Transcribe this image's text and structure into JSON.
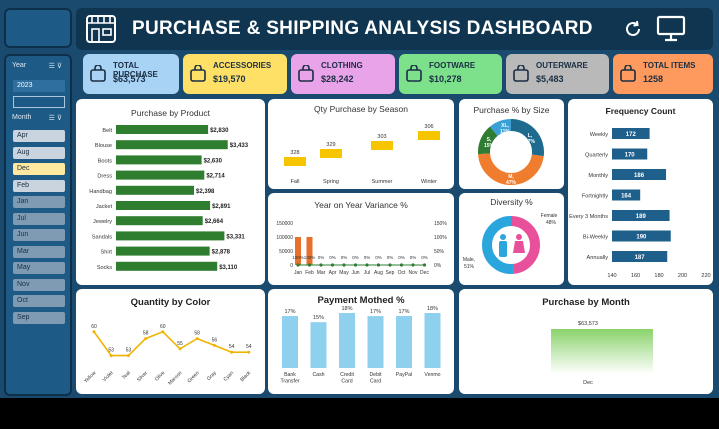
{
  "header": {
    "title": "PURCHASE & SHIPPING ANALYSIS DASHBOARD"
  },
  "slicers": {
    "year": {
      "label": "Year",
      "selected": "2023"
    },
    "month": {
      "label": "Month",
      "items": [
        "Apr",
        "Aug",
        "Dec",
        "Feb",
        "Jan",
        "Jul",
        "Jun",
        "Mar",
        "May",
        "Nov",
        "Oct",
        "Sep"
      ],
      "selected": "Dec"
    }
  },
  "kpis": [
    {
      "label": "TOTAL PURCHASE",
      "value": "$63,573",
      "color": "#a9d3f5",
      "icon": "cart-icon"
    },
    {
      "label": "ACCESSORIES",
      "value": "$19,570",
      "color": "#ffe066",
      "icon": "bag-icon"
    },
    {
      "label": "CLOTHING",
      "value": "$28,242",
      "color": "#e9a3e8",
      "icon": "clothes-icon"
    },
    {
      "label": "FOOTWARE",
      "value": "$10,278",
      "color": "#7de08a",
      "icon": "shoe-icon"
    },
    {
      "label": "OUTERWARE",
      "value": "$5,483",
      "color": "#b9b9b9",
      "icon": "shirt-icon"
    },
    {
      "label": "TOTAL ITEMS",
      "value": "1258",
      "color": "#ff9a5e",
      "icon": "house-icon"
    }
  ],
  "titles": {
    "product": "Purchase by Product",
    "season": "Qty Purchase by Season",
    "size": "Purchase % by Size",
    "freq": "Frequency Count",
    "yoy": "Year on Year Variance %",
    "diversity": "Diversity %",
    "color": "Quantity by Color",
    "payment": "Payment Mothed %",
    "month": "Purchase by Month"
  },
  "chart_data": [
    {
      "type": "bar",
      "title": "Purchase by Product",
      "categories": [
        "Belt",
        "Blouse",
        "Boots",
        "Dress",
        "Handbag",
        "Jacket",
        "Jewelry",
        "Sandals",
        "Shirt",
        "Socks"
      ],
      "values": [
        2830,
        3433,
        2630,
        2714,
        2398,
        2891,
        2664,
        3331,
        2878,
        3110
      ],
      "labels": [
        "$2,830",
        "$3,433",
        "$2,630",
        "$2,714",
        "$2,398",
        "$2,891",
        "$2,664",
        "$3,331",
        "$2,878",
        "$3,110"
      ]
    },
    {
      "type": "bar",
      "title": "Qty Purchase by Season",
      "categories": [
        "Fall",
        "Spring",
        "Summer",
        "Winter"
      ],
      "values": [
        328,
        329,
        303,
        306
      ]
    },
    {
      "type": "pie",
      "title": "Purchase % by Size",
      "slices": [
        {
          "name": "L",
          "value": 27,
          "color": "#1f6b8f"
        },
        {
          "name": "M",
          "value": 47,
          "color": "#f07c2e"
        },
        {
          "name": "S",
          "value": 15,
          "color": "#2e7d32"
        },
        {
          "name": "XL",
          "value": 11,
          "color": "#3aa0d6"
        }
      ],
      "labels": [
        "L, 27%",
        "M, 47%",
        "S, 15%",
        "XL, 11%"
      ]
    },
    {
      "type": "bar",
      "title": "Frequency Count",
      "categories": [
        "Weekly",
        "Quarterly",
        "Monthly",
        "Fortnightly",
        "Every 3 Months",
        "Bi-Weekly",
        "Annually"
      ],
      "values": [
        172,
        170,
        186,
        164,
        189,
        190,
        187
      ],
      "x_ticks": [
        "140",
        "160",
        "180",
        "200",
        "220"
      ],
      "xlim": [
        140,
        220
      ]
    },
    {
      "type": "line",
      "title": "Year on Year Variance %",
      "categories": [
        "Jan",
        "Feb",
        "Mar",
        "Apr",
        "May",
        "Jun",
        "Jul",
        "Aug",
        "Sep",
        "Oct",
        "Nov",
        "Dec"
      ],
      "bar_values": [
        100000,
        100000,
        0,
        0,
        0,
        0,
        0,
        0,
        0,
        0,
        0,
        0
      ],
      "variance_labels": [
        "100%",
        "100%",
        "0%",
        "0%",
        "0%",
        "0%",
        "0%",
        "0%",
        "0%",
        "0%",
        "0%",
        "0%"
      ],
      "y_ticks": [
        "150000",
        "100000",
        "50000",
        "0"
      ],
      "y2_ticks": [
        "150%",
        "100%",
        "50%",
        "0%"
      ]
    },
    {
      "type": "pie",
      "title": "Diversity %",
      "slices": [
        {
          "name": "Female",
          "value": 48,
          "color": "#e9509b"
        },
        {
          "name": "Male",
          "value": 51,
          "color": "#2aa6dc"
        }
      ],
      "labels": [
        "Female 48%",
        "Male 51%"
      ]
    },
    {
      "type": "line",
      "title": "Quantity by Color",
      "categories": [
        "Yellow",
        "Violet",
        "Teal",
        "Silver",
        "Olive",
        "Maroon",
        "Green",
        "Gray",
        "Cyan",
        "Black"
      ],
      "values": [
        60,
        53,
        53,
        58,
        60,
        55,
        58,
        56,
        54,
        54
      ]
    },
    {
      "type": "bar",
      "title": "Payment Mothed %",
      "categories": [
        "Bank Transfer",
        "Cash",
        "Credit Card",
        "Debit Card",
        "PayPal",
        "Venmo"
      ],
      "values": [
        17,
        15,
        18,
        17,
        17,
        18
      ],
      "labels": [
        "17%",
        "15%",
        "18%",
        "17%",
        "17%",
        "18%"
      ]
    },
    {
      "type": "bar",
      "title": "Purchase by Month",
      "categories": [
        "Dec"
      ],
      "values": [
        63573
      ],
      "labels": [
        "$63,573"
      ]
    }
  ]
}
